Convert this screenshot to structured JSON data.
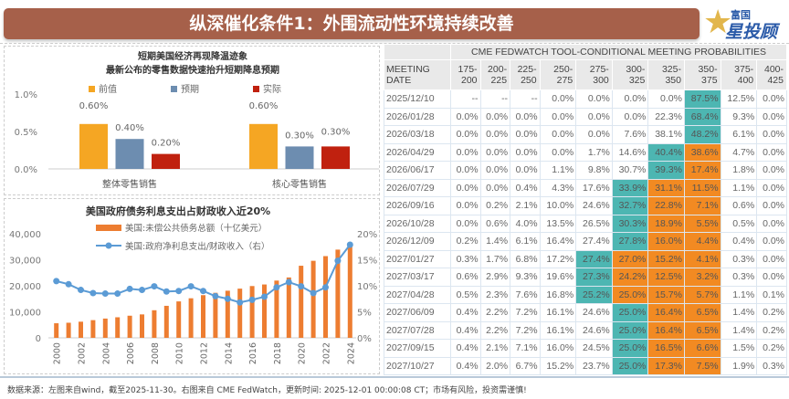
{
  "banner": {
    "title": "纵深催化条件1：外围流动性环境持续改善"
  },
  "logo": {
    "line1": "富国",
    "line2": "星投顾",
    "colors": {
      "star": "#e2b64c",
      "text": "#2a5aa8"
    }
  },
  "chart_data": [
    {
      "type": "bar",
      "title": "短期美国经济再现降温迹象",
      "subtitle": "最新公布的零售数据快速抬升短期降息预期",
      "categories": [
        "整体零售销售",
        "核心零售销售"
      ],
      "series": [
        {
          "name": "前值",
          "values": [
            0.6,
            0.6
          ],
          "labels": [
            "0.60%",
            "0.60%"
          ],
          "color": "#f5a623"
        },
        {
          "name": "预期",
          "values": [
            0.4,
            0.3
          ],
          "labels": [
            "0.40%",
            "0.30%"
          ],
          "color": "#6d8db0"
        },
        {
          "name": "实际",
          "values": [
            0.2,
            0.3
          ],
          "labels": [
            "0.20%",
            "0.30%"
          ],
          "color": "#c0210f"
        }
      ],
      "yticks": [
        "0.0%",
        "0.5%",
        "1.0%"
      ],
      "ylim": [
        0,
        1.0
      ],
      "legend": "top"
    },
    {
      "type": "bar+line",
      "title": "美国政府债务利息支出占财政收入近20%",
      "x": [
        2000,
        2001,
        2002,
        2003,
        2004,
        2005,
        2006,
        2007,
        2008,
        2009,
        2010,
        2011,
        2012,
        2013,
        2014,
        2015,
        2016,
        2017,
        2018,
        2019,
        2020,
        2021,
        2022,
        2023,
        2024
      ],
      "xticks": [
        "2000",
        "2002",
        "2004",
        "2006",
        "2008",
        "2010",
        "2012",
        "2014",
        "2016",
        "2018",
        "2020",
        "2022",
        "2024"
      ],
      "series": [
        {
          "name": "美国:未偿公共债务总额（十亿美元）",
          "type": "bar",
          "axis": "left",
          "color": "#ed7d31",
          "values": [
            5600,
            5800,
            6200,
            6800,
            7400,
            7900,
            8500,
            9000,
            10600,
            12300,
            14000,
            15200,
            16400,
            17300,
            18100,
            18900,
            19900,
            20500,
            22000,
            23200,
            27700,
            29600,
            31400,
            33900,
            36000
          ]
        },
        {
          "name": "美国:政府净利息支出/财政收入（右）",
          "type": "line",
          "axis": "right",
          "color": "#5b9bd5",
          "values": [
            10.9,
            10.3,
            9.2,
            8.6,
            8.5,
            8.5,
            9.4,
            9.2,
            9.9,
            8.9,
            9.0,
            9.9,
            9.0,
            8.0,
            7.5,
            6.8,
            7.3,
            7.9,
            9.7,
            10.7,
            9.9,
            8.6,
            9.7,
            14.8,
            17.9
          ]
        }
      ],
      "yleft": {
        "ticks": [
          "0",
          "10,000",
          "20,000",
          "30,000",
          "40,000"
        ],
        "lim": [
          0,
          40000
        ]
      },
      "yright": {
        "ticks": [
          "0%",
          "5%",
          "10%",
          "15%",
          "20%"
        ],
        "lim": [
          0,
          20
        ]
      },
      "legend": "top"
    }
  ],
  "table": {
    "group_header": "CME FEDWATCH TOOL-CONDITIONAL MEETING PROBABILITIES",
    "date_header": [
      "MEETING",
      "DATE"
    ],
    "columns": [
      [
        "175-",
        "200"
      ],
      [
        "200-",
        "225"
      ],
      [
        "225-",
        "250"
      ],
      [
        "250-",
        "275"
      ],
      [
        "275-",
        "300"
      ],
      [
        "300-",
        "325"
      ],
      [
        "325-",
        "350"
      ],
      [
        "350-",
        "375"
      ],
      [
        "375-",
        "400"
      ],
      [
        "400-",
        "425"
      ]
    ],
    "highlight_colors": {
      "max": "#4db6b2",
      "high": "#f28a22"
    },
    "rows": [
      {
        "date": "2025/12/10",
        "values": [
          "--",
          "--",
          "--",
          "0.0%",
          "0.0%",
          "0.0%",
          "0.0%",
          "87.5%",
          "12.5%",
          "0.0%"
        ],
        "hl": "-------t--"
      },
      {
        "date": "2026/01/28",
        "values": [
          "0.0%",
          "0.0%",
          "0.0%",
          "0.0%",
          "0.0%",
          "0.0%",
          "22.3%",
          "68.4%",
          "9.3%",
          "0.0%"
        ],
        "hl": "-------t--"
      },
      {
        "date": "2026/03/18",
        "values": [
          "0.0%",
          "0.0%",
          "0.0%",
          "0.0%",
          "0.0%",
          "7.6%",
          "38.1%",
          "48.2%",
          "6.1%",
          "0.0%"
        ],
        "hl": "-------t--"
      },
      {
        "date": "2026/04/29",
        "values": [
          "0.0%",
          "0.0%",
          "0.0%",
          "0.0%",
          "1.7%",
          "14.6%",
          "40.4%",
          "38.6%",
          "4.7%",
          "0.0%"
        ],
        "hl": "------to--"
      },
      {
        "date": "2026/06/17",
        "values": [
          "0.0%",
          "0.0%",
          "0.0%",
          "1.1%",
          "9.8%",
          "30.7%",
          "39.3%",
          "17.4%",
          "1.8%",
          "0.0%"
        ],
        "hl": "------to--"
      },
      {
        "date": "2026/07/29",
        "values": [
          "0.0%",
          "0.0%",
          "0.4%",
          "4.3%",
          "17.6%",
          "33.9%",
          "31.1%",
          "11.5%",
          "1.1%",
          "0.0%"
        ],
        "hl": "-----too--"
      },
      {
        "date": "2026/09/16",
        "values": [
          "0.0%",
          "0.2%",
          "2.1%",
          "10.0%",
          "24.6%",
          "32.7%",
          "22.8%",
          "7.1%",
          "0.6%",
          "0.0%"
        ],
        "hl": "-----too--"
      },
      {
        "date": "2026/10/28",
        "values": [
          "0.0%",
          "0.6%",
          "4.0%",
          "13.5%",
          "26.5%",
          "30.3%",
          "18.9%",
          "5.5%",
          "0.5%",
          "0.0%"
        ],
        "hl": "-----too--"
      },
      {
        "date": "2026/12/09",
        "values": [
          "0.2%",
          "1.4%",
          "6.1%",
          "16.4%",
          "27.4%",
          "27.8%",
          "16.0%",
          "4.4%",
          "0.4%",
          "0.0%"
        ],
        "hl": "-----too--"
      },
      {
        "date": "2027/01/27",
        "values": [
          "0.3%",
          "1.7%",
          "6.8%",
          "17.2%",
          "27.4%",
          "27.0%",
          "15.2%",
          "4.1%",
          "0.3%",
          "0.0%"
        ],
        "hl": "----tooo--"
      },
      {
        "date": "2027/03/17",
        "values": [
          "0.6%",
          "2.9%",
          "9.3%",
          "19.6%",
          "27.3%",
          "24.2%",
          "12.5%",
          "3.2%",
          "0.3%",
          "0.0%"
        ],
        "hl": "----tooo--"
      },
      {
        "date": "2027/04/28",
        "values": [
          "0.5%",
          "2.3%",
          "7.6%",
          "16.8%",
          "25.2%",
          "25.0%",
          "15.7%",
          "5.7%",
          "1.1%",
          "0.1%"
        ],
        "hl": "----tooo--"
      },
      {
        "date": "2027/06/09",
        "values": [
          "0.4%",
          "2.2%",
          "7.2%",
          "16.1%",
          "24.6%",
          "25.0%",
          "16.4%",
          "6.5%",
          "1.4%",
          "0.2%"
        ],
        "hl": "-----too--"
      },
      {
        "date": "2027/07/28",
        "values": [
          "0.4%",
          "2.2%",
          "7.2%",
          "16.1%",
          "24.6%",
          "25.0%",
          "16.4%",
          "6.5%",
          "1.4%",
          "0.2%"
        ],
        "hl": "-----too--"
      },
      {
        "date": "2027/09/15",
        "values": [
          "0.4%",
          "2.1%",
          "7.1%",
          "16.0%",
          "24.5%",
          "25.0%",
          "16.5%",
          "6.6%",
          "1.5%",
          "0.2%"
        ],
        "hl": "-----too--"
      },
      {
        "date": "2027/10/27",
        "values": [
          "0.4%",
          "2.0%",
          "6.7%",
          "15.2%",
          "23.7%",
          "25.0%",
          "17.3%",
          "7.5%",
          "1.9%",
          "0.3%"
        ],
        "hl": "-----too--"
      }
    ]
  },
  "footer": {
    "text": "数据来源：左图来自wind，截至2025-11-30。右图来自 CME FedWatch，更新时间: 2025-12-01 00:00:08 CT；市场有风险，投资需谨慎!"
  }
}
